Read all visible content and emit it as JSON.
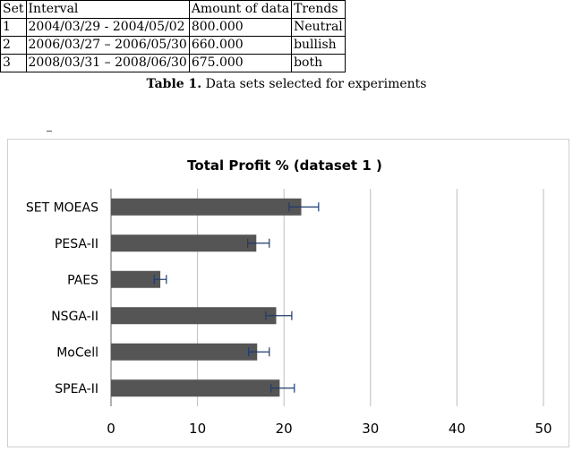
{
  "table": {
    "headers": [
      "Set",
      "Interval",
      "Amount of data",
      "Trends"
    ],
    "rows": [
      [
        "1",
        "2004/03/29 - 2004/05/02",
        "800.000",
        "Neutral"
      ],
      [
        "2",
        "2006/03/27 – 2006/05/30",
        "660.000",
        "bullish"
      ],
      [
        "3",
        "2008/03/31 – 2008/06/30",
        "675.000",
        "both"
      ]
    ],
    "caption_label": "Table 1.",
    "caption_text": " Data sets selected for experiments"
  },
  "chart_data": {
    "type": "bar",
    "orientation": "horizontal",
    "title": "Total Profit % (dataset 1 )",
    "categories": [
      "SET MOEAS",
      "PESA-II",
      "PAES",
      "NSGA-II",
      "MoCell",
      "SPEA-II"
    ],
    "values": [
      22,
      16.8,
      5.7,
      19.1,
      16.9,
      19.5
    ],
    "error_low": [
      1.4,
      1.0,
      0.7,
      1.2,
      1.0,
      1.0
    ],
    "error_high": [
      2.0,
      1.5,
      0.7,
      1.8,
      1.4,
      1.7
    ],
    "xlim": [
      0,
      50
    ],
    "x_ticks": [
      "0",
      "10",
      "20",
      "30",
      "40",
      "50"
    ],
    "grid": true,
    "bar_color": "#555555",
    "error_color": "#1f3a6e"
  }
}
